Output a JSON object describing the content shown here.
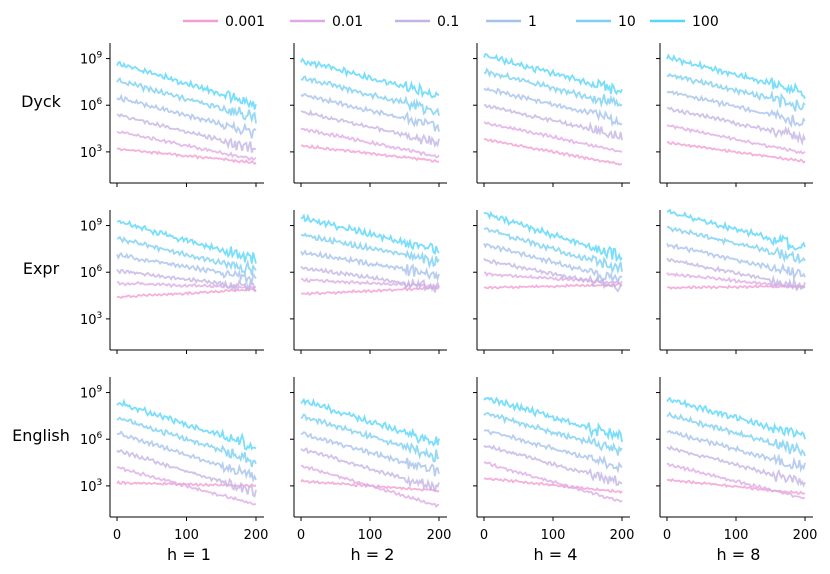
{
  "chart_data": {
    "type": "line",
    "title": "",
    "layout": "3x4 grid of small-multiple log-scale line plots",
    "legend": {
      "placement": "top",
      "entries": [
        "0.001",
        "0.01",
        "0.1",
        "1",
        "10",
        "100"
      ],
      "colors": [
        "#f19ed2",
        "#deaae6",
        "#c4b4e4",
        "#a6c2ec",
        "#7bd0f2",
        "#57d6fb"
      ]
    },
    "row_labels": [
      "Dyck",
      "Expr",
      "English"
    ],
    "column_labels": [
      "h = 1",
      "h = 2",
      "h = 4",
      "h = 8"
    ],
    "x_ticks": [
      "0",
      "100",
      "200"
    ],
    "x_range": [
      0,
      200
    ],
    "y_scale": "log",
    "y_range_log10": [
      1.0,
      10.0
    ],
    "y_ticks": [
      {
        "value_log10": 3,
        "label_base": "10",
        "label_exp": "3"
      },
      {
        "value_log10": 6,
        "label_base": "10",
        "label_exp": "6"
      },
      {
        "value_log10": 9,
        "label_base": "10",
        "label_exp": "9"
      }
    ],
    "series_names": [
      "0.001",
      "0.01",
      "0.1",
      "1",
      "10",
      "100"
    ],
    "curves_log10_start_end": {
      "Dyck": [
        [
          [
            3.2,
            2.3
          ],
          [
            4.3,
            2.5
          ],
          [
            5.4,
            3.2
          ],
          [
            6.5,
            4.2
          ],
          [
            7.6,
            5.2
          ],
          [
            8.7,
            6.1
          ]
        ],
        [
          [
            3.4,
            2.4
          ],
          [
            4.5,
            2.7
          ],
          [
            5.6,
            3.6
          ],
          [
            6.7,
            4.6
          ],
          [
            7.8,
            5.6
          ],
          [
            8.9,
            6.6
          ]
        ],
        [
          [
            3.8,
            2.2
          ],
          [
            4.9,
            3.0
          ],
          [
            6.0,
            4.0
          ],
          [
            7.1,
            5.0
          ],
          [
            8.2,
            6.0
          ],
          [
            9.2,
            6.9
          ]
        ],
        [
          [
            3.6,
            2.4
          ],
          [
            4.7,
            2.9
          ],
          [
            5.8,
            3.9
          ],
          [
            6.9,
            4.9
          ],
          [
            8.0,
            5.9
          ],
          [
            9.1,
            6.8
          ]
        ]
      ],
      "Expr": [
        [
          [
            4.4,
            4.9
          ],
          [
            5.3,
            5.0
          ],
          [
            6.1,
            5.0
          ],
          [
            7.1,
            5.6
          ],
          [
            8.2,
            6.1
          ],
          [
            9.3,
            6.8
          ]
        ],
        [
          [
            4.6,
            5.0
          ],
          [
            5.5,
            5.1
          ],
          [
            6.3,
            5.0
          ],
          [
            7.3,
            5.8
          ],
          [
            8.4,
            6.7
          ],
          [
            9.5,
            7.4
          ]
        ],
        [
          [
            5.0,
            5.2
          ],
          [
            5.9,
            5.3
          ],
          [
            6.8,
            5.0
          ],
          [
            7.8,
            5.5
          ],
          [
            8.8,
            6.2
          ],
          [
            9.8,
            7.0
          ]
        ],
        [
          [
            5.0,
            5.1
          ],
          [
            5.9,
            5.0
          ],
          [
            6.8,
            5.1
          ],
          [
            7.8,
            5.8
          ],
          [
            8.9,
            6.8
          ],
          [
            9.9,
            7.6
          ]
        ]
      ],
      "English": [
        [
          [
            3.2,
            3.0
          ],
          [
            4.2,
            1.8
          ],
          [
            5.3,
            2.6
          ],
          [
            6.4,
            3.6
          ],
          [
            7.4,
            4.6
          ],
          [
            8.4,
            5.5
          ]
        ],
        [
          [
            3.3,
            2.7
          ],
          [
            4.3,
            1.7
          ],
          [
            5.4,
            2.8
          ],
          [
            6.4,
            3.9
          ],
          [
            7.5,
            4.9
          ],
          [
            8.5,
            5.8
          ]
        ],
        [
          [
            3.5,
            2.6
          ],
          [
            4.5,
            2.0
          ],
          [
            5.6,
            3.2
          ],
          [
            6.6,
            4.2
          ],
          [
            7.7,
            5.2
          ],
          [
            8.7,
            6.1
          ]
        ],
        [
          [
            3.4,
            2.5
          ],
          [
            4.4,
            2.2
          ],
          [
            5.5,
            3.2
          ],
          [
            6.5,
            4.2
          ],
          [
            7.6,
            5.2
          ],
          [
            8.6,
            6.2
          ]
        ]
      ]
    }
  }
}
